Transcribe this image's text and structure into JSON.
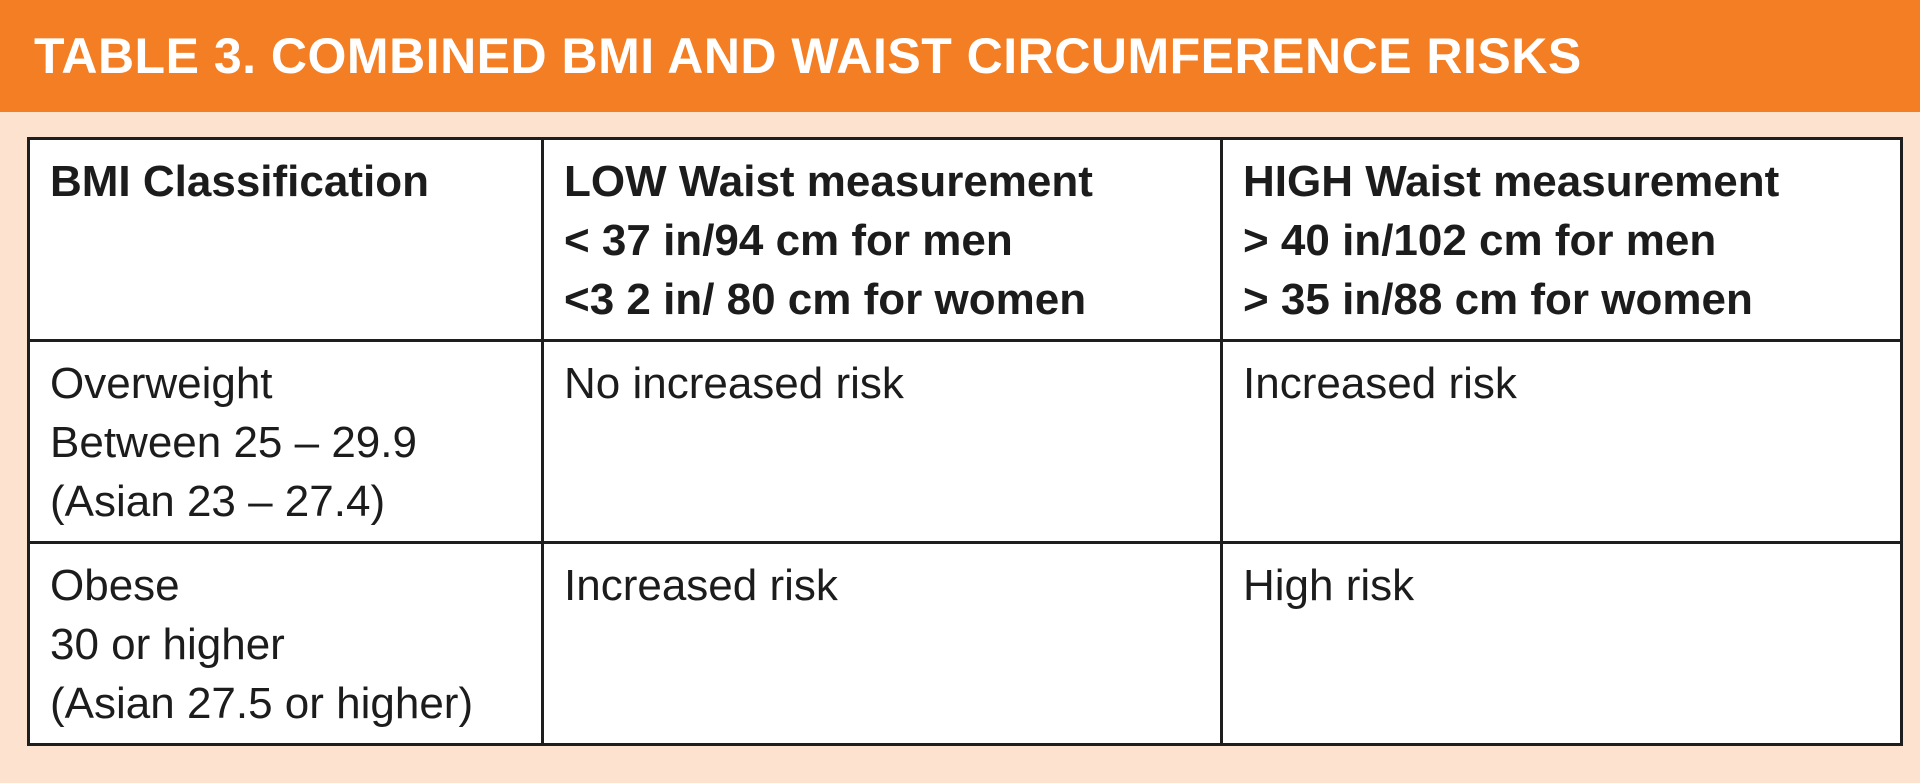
{
  "title": "TABLE 3. COMBINED BMI AND WAIST CIRCUMFERENCE RISKS",
  "colors": {
    "title_bar": "#f37e23",
    "background": "#fde3cf",
    "table_bg": "#ffffff",
    "border": "#1e1e1e"
  },
  "table": {
    "headers": [
      {
        "lines": [
          "BMI Classification"
        ]
      },
      {
        "lines": [
          "LOW Waist measurement",
          "< 37 in/94 cm for men",
          "<3 2 in/ 80 cm for women"
        ]
      },
      {
        "lines": [
          "HIGH Waist measurement",
          "> 40 in/102 cm for men",
          "> 35 in/88 cm for women"
        ]
      }
    ],
    "rows": [
      {
        "classification": [
          "Overweight",
          "Between 25 – 29.9",
          "(Asian 23 – 27.4)"
        ],
        "low": "No increased risk",
        "high": "Increased risk"
      },
      {
        "classification": [
          "Obese",
          "30 or higher",
          "(Asian 27.5 or higher)"
        ],
        "low": "Increased risk",
        "high": "High risk"
      }
    ]
  }
}
